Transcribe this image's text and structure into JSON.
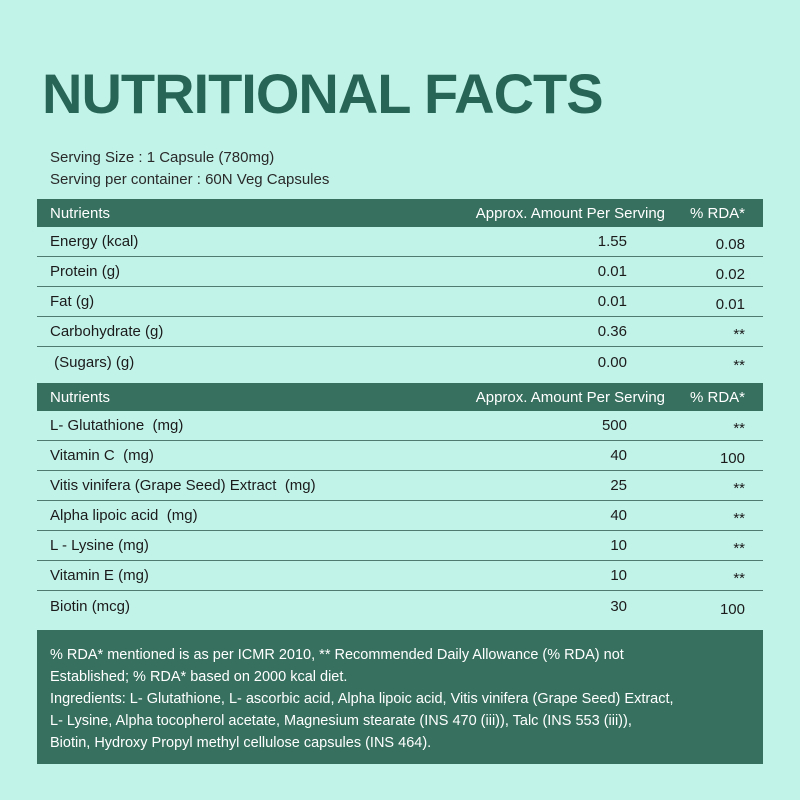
{
  "title": "NUTRITIONAL FACTS",
  "serving": {
    "size": "Serving Size : 1 Capsule (780mg)",
    "per_container": "Serving per container : 60N Veg Capsules"
  },
  "headers": {
    "nutrients": "Nutrients",
    "amount": "Approx. Amount Per Serving",
    "rda": "% RDA*"
  },
  "table1": [
    {
      "name": "Energy (kcal)",
      "amount": "1.55",
      "rda": "0.08"
    },
    {
      "name": "Protein (g)",
      "amount": "0.01",
      "rda": "0.02"
    },
    {
      "name": "Fat (g)",
      "amount": "0.01",
      "rda": "0.01"
    },
    {
      "name": "Carbohydrate (g)",
      "amount": "0.36",
      "rda": "**"
    },
    {
      "name": " (Sugars) (g)",
      "amount": "0.00",
      "rda": "**"
    }
  ],
  "table2": [
    {
      "name": "L- Glutathione  (mg)",
      "amount": "500",
      "rda": "**"
    },
    {
      "name": "Vitamin C  (mg)",
      "amount": "40",
      "rda": "100"
    },
    {
      "name": "Vitis vinifera (Grape Seed) Extract  (mg)",
      "amount": "25",
      "rda": "**"
    },
    {
      "name": "Alpha lipoic acid  (mg)",
      "amount": "40",
      "rda": "**"
    },
    {
      "name": "L - Lysine (mg)",
      "amount": "10",
      "rda": "**"
    },
    {
      "name": "Vitamin E (mg)",
      "amount": "10",
      "rda": "**"
    },
    {
      "name": "Biotin (mcg)",
      "amount": "30",
      "rda": "100"
    }
  ],
  "footer": {
    "line1": "% RDA* mentioned is as per ICMR 2010, ** Recommended Daily Allowance (% RDA) not",
    "line2": "Established; % RDA* based on 2000 kcal diet.",
    "line3": "Ingredients: L- Glutathione, L- ascorbic acid, Alpha lipoic acid, Vitis vinifera (Grape Seed) Extract,",
    "line4": "L- Lysine, Alpha tocopherol acetate, Magnesium stearate (INS 470 (iii)), Talc (INS 553 (iii)),",
    "line5": "Biotin, Hydroxy Propyl methyl cellulose capsules (INS 464)."
  },
  "colors": {
    "background": "#c2f3e9",
    "accent": "#37705f",
    "title": "#276557"
  }
}
